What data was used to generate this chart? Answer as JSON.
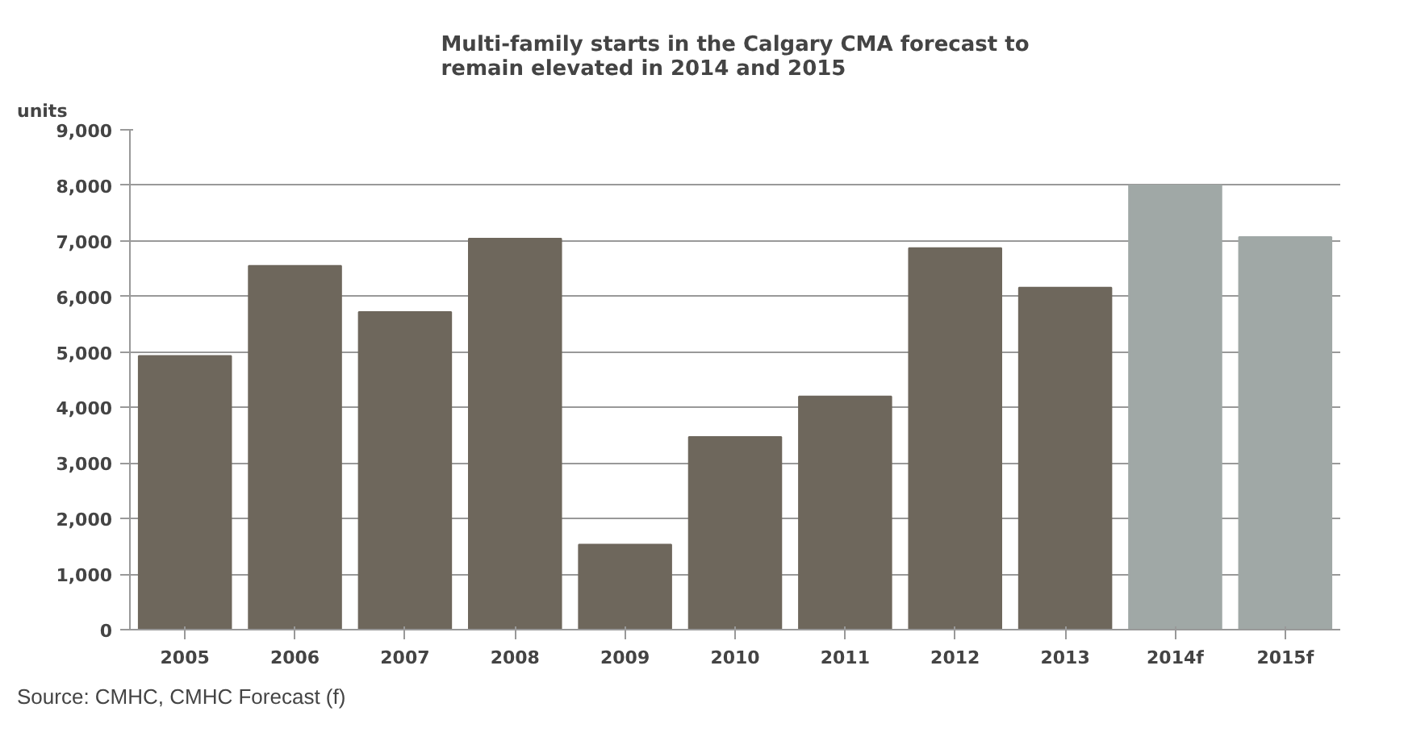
{
  "chart_data": {
    "type": "bar",
    "title": "Multi-family starts in the Calgary CMA forecast to\nremain elevated in 2014 and 2015",
    "ylabel": "units",
    "categories": [
      "2005",
      "2006",
      "2007",
      "2008",
      "2009",
      "2010",
      "2011",
      "2012",
      "2013",
      "2014f",
      "2015f"
    ],
    "values": [
      4930,
      6550,
      5720,
      7040,
      1530,
      3470,
      4200,
      6870,
      6160,
      8000,
      7070
    ],
    "colors": [
      "#6e675c",
      "#6e675c",
      "#6e675c",
      "#6e675c",
      "#6e675c",
      "#6e675c",
      "#6e675c",
      "#6e675c",
      "#6e675c",
      "#a0a8a6",
      "#a0a8a6"
    ],
    "ylim": [
      0,
      9000
    ],
    "yticks": [
      0,
      {
        "value": 1000,
        "label": "1,000"
      },
      {
        "value": 2000,
        "label": "2,000"
      },
      {
        "value": 3000,
        "label": "3,000"
      },
      {
        "value": 4000,
        "label": "4,000"
      },
      {
        "value": 5000,
        "label": "5,000"
      },
      {
        "value": 6000,
        "label": "6,000"
      },
      {
        "value": 7000,
        "label": "7,000"
      },
      {
        "value": 8000,
        "label": "8,000"
      },
      {
        "value": 9000,
        "label": "9,000"
      }
    ],
    "grid": "y",
    "annotations": [
      "Source:  CMHC, CMHC Forecast (f)"
    ]
  }
}
